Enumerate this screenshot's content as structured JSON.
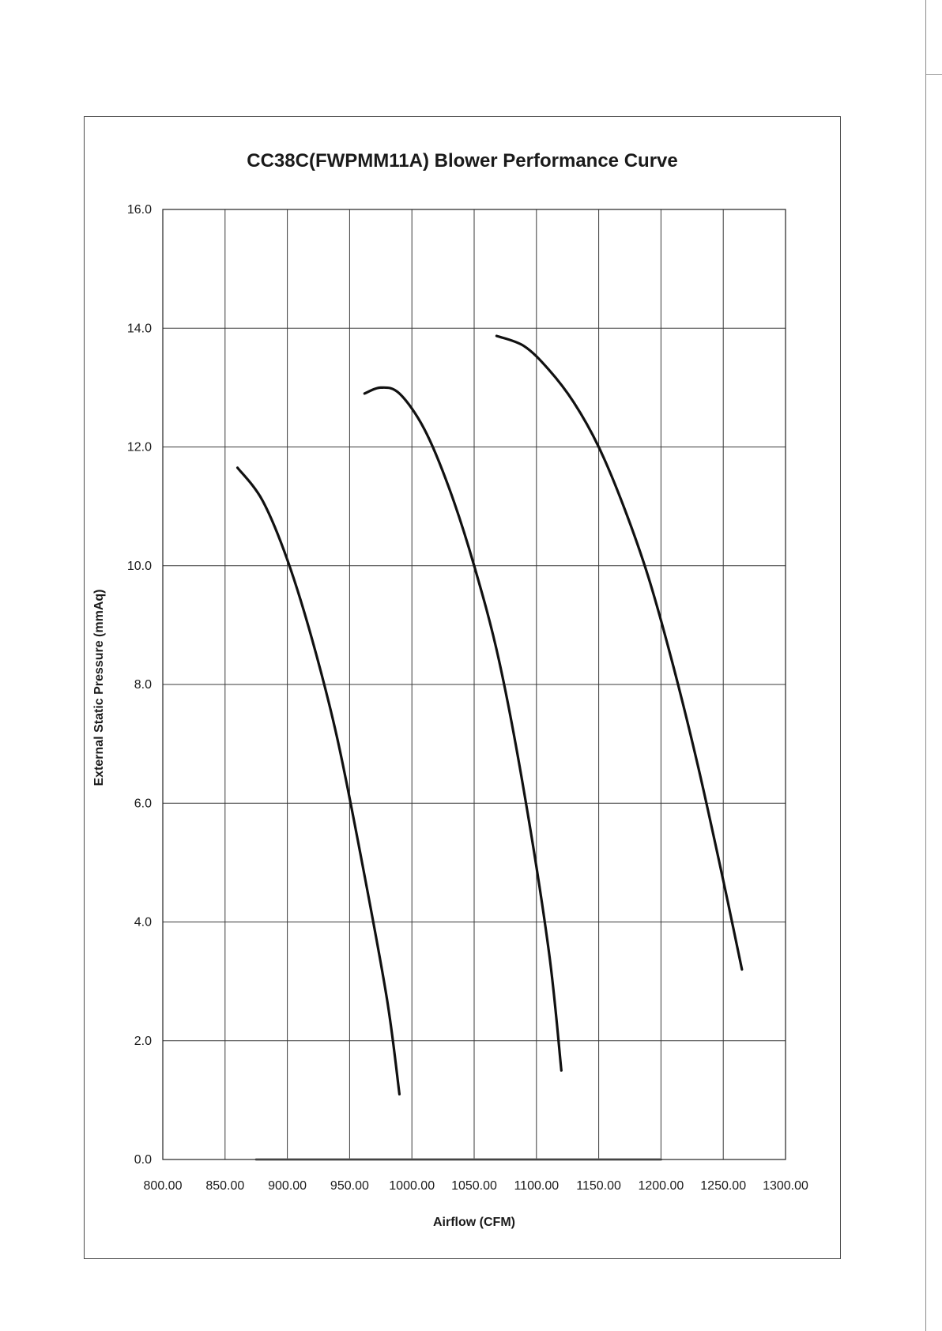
{
  "chart_data": {
    "type": "line",
    "title": "CC38C(FWPMM11A) Blower Performance Curve",
    "xlabel": "Airflow (CFM)",
    "ylabel": "External Static Pressure (mmAq)",
    "xlim": [
      800,
      1300
    ],
    "ylim": [
      0,
      16
    ],
    "xticks": [
      "800.00",
      "850.00",
      "900.00",
      "950.00",
      "1000.00",
      "1050.00",
      "1100.00",
      "1150.00",
      "1200.00",
      "1250.00",
      "1300.00"
    ],
    "yticks": [
      "0.0",
      "2.0",
      "4.0",
      "6.0",
      "8.0",
      "10.0",
      "12.0",
      "14.0",
      "16.0"
    ],
    "grid": true,
    "series": [
      {
        "color": "#111111",
        "x": [
          860,
          880,
          900,
          920,
          940,
          960,
          980,
          990
        ],
        "y": [
          11.65,
          11.1,
          10.1,
          8.75,
          7.1,
          5.0,
          2.7,
          1.1
        ]
      },
      {
        "color": "#111111",
        "x": [
          962,
          975,
          990,
          1010,
          1030,
          1050,
          1070,
          1090,
          1110,
          1120
        ],
        "y": [
          12.9,
          13.0,
          12.9,
          12.3,
          11.3,
          10.0,
          8.4,
          6.2,
          3.5,
          1.5
        ]
      },
      {
        "color": "#111111",
        "x": [
          1068,
          1090,
          1110,
          1130,
          1150,
          1170,
          1190,
          1210,
          1230,
          1250,
          1265
        ],
        "y": [
          13.87,
          13.7,
          13.3,
          12.75,
          12.0,
          11.0,
          9.8,
          8.3,
          6.6,
          4.7,
          3.2
        ]
      },
      {
        "color": "#7a7a7a",
        "x": [
          875,
          1200
        ],
        "y": [
          0.0,
          0.0
        ]
      }
    ]
  }
}
